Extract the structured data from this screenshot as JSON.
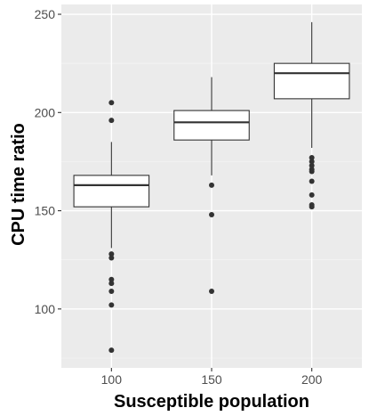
{
  "chart_data": {
    "type": "boxplot",
    "xlabel": "Susceptible population",
    "ylabel": "CPU time ratio",
    "categories": [
      "100",
      "150",
      "200"
    ],
    "ylim": [
      70,
      255
    ],
    "yticks": [
      100,
      150,
      200,
      250
    ],
    "grid": true,
    "boxes": [
      {
        "category": "100",
        "min": 131,
        "q1": 152,
        "median": 163,
        "q3": 168,
        "max": 185,
        "outliers": [
          205,
          196,
          128,
          126,
          115,
          113,
          109,
          102,
          79
        ]
      },
      {
        "category": "150",
        "min": 168,
        "q1": 186,
        "median": 195,
        "q3": 201,
        "max": 218,
        "outliers": [
          163,
          148,
          109
        ]
      },
      {
        "category": "200",
        "min": 182,
        "q1": 207,
        "median": 220,
        "q3": 225,
        "max": 246,
        "outliers": [
          177,
          175,
          173,
          171,
          170,
          165,
          158,
          153,
          152
        ]
      }
    ],
    "colors": {
      "panel": "#ebebeb",
      "grid_major": "#ffffff",
      "grid_minor": "#f5f5f5",
      "box_fill": "#ffffff",
      "box_line": "#333333",
      "outlier": "#333333",
      "tick": "#333333"
    }
  }
}
